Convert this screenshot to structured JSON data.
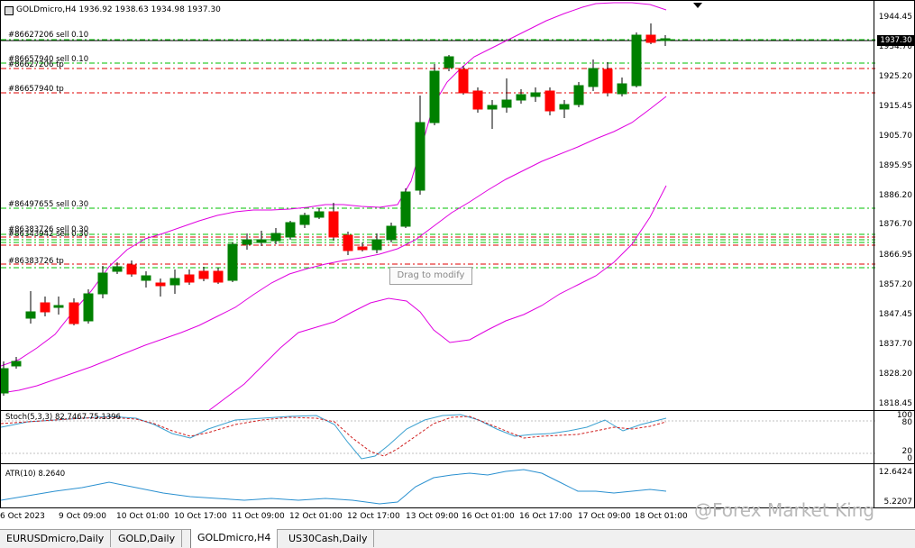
{
  "header": {
    "symbol_info": "GOLDmicro,H4  1936.92 1938.63 1934.98 1937.30"
  },
  "price_axis": [
    "1944.45",
    "1934.70",
    "1925.20",
    "1915.45",
    "1905.70",
    "1895.95",
    "1886.20",
    "1876.70",
    "1866.95",
    "1857.20",
    "1847.45",
    "1837.70",
    "1828.20",
    "1818.45"
  ],
  "current_price": "1937.30",
  "orders": [
    {
      "label": "#86627206 sell 0.10",
      "kind": "entry"
    },
    {
      "label": "#86657940 sell 0.10",
      "kind": "entry"
    },
    {
      "label": "#86627206 tp",
      "kind": "tp"
    },
    {
      "label": "#86657940 tp",
      "kind": "tp"
    },
    {
      "label": "#86497655 sell 0.30",
      "kind": "entry"
    },
    {
      "label": "#86383726 sell 0.30",
      "kind": "entry"
    },
    {
      "label": "#86343942 sell 0.30",
      "kind": "entry"
    },
    {
      "label": "#86383726 tp",
      "kind": "tp"
    }
  ],
  "stoch": {
    "label": "Stoch(5,3,3) 82.7467 75.1396",
    "axis": [
      "100",
      "80",
      "20",
      "0"
    ]
  },
  "atr": {
    "label": "ATR(10) 8.2640",
    "axis": [
      "12.6424",
      "5.2207"
    ]
  },
  "time_axis": [
    "6 Oct 2023",
    "9 Oct 09:00",
    "10 Oct 01:00",
    "10 Oct 17:00",
    "11 Oct 09:00",
    "12 Oct 01:00",
    "12 Oct 17:00",
    "13 Oct 09:00",
    "16 Oct 01:00",
    "16 Oct 17:00",
    "17 Oct 09:00",
    "18 Oct 01:00"
  ],
  "tooltip": "Drag to modify",
  "watermark": "@Forex Market King",
  "tabs": [
    {
      "label": "EURUSDmicro,Daily",
      "active": false
    },
    {
      "label": "GOLD,Daily",
      "active": false
    },
    {
      "label": "GOLDmicro,H4",
      "active": true
    },
    {
      "label": "US30Cash,Daily",
      "active": false
    }
  ],
  "colors": {
    "bull": "#008000",
    "bear": "#ff0000",
    "bands": "#e000e0",
    "sell_line": "#00c000",
    "tp_line": "#e00000",
    "stoch_main": "#3aa0d0",
    "stoch_signal": "#d02020",
    "atr": "#2a90d0"
  }
}
